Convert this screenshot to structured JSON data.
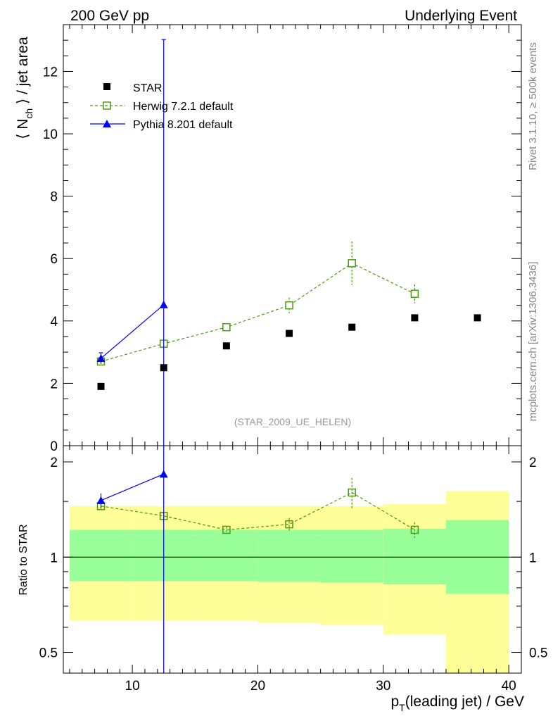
{
  "chart_data": [
    {
      "type": "scatter",
      "panel": "main",
      "title_left": "200 GeV pp",
      "title_right": "Underlying Event",
      "ylabel_main": "⟨ N",
      "ylabel_sub": "ch",
      "ylabel_tail": " ⟩ / jet area",
      "xlim": [
        4.5,
        41
      ],
      "ylim": [
        0,
        13.5
      ],
      "yticks": [
        0,
        2,
        4,
        6,
        8,
        10,
        12
      ],
      "yticklabels": [
        "0",
        "2",
        "4",
        "6",
        "8",
        "10",
        "12"
      ],
      "series": [
        {
          "name": "STAR",
          "color": "#000000",
          "x": [
            7.5,
            12.5,
            17.5,
            22.5,
            27.5,
            32.5,
            37.5
          ],
          "y": [
            1.9,
            2.5,
            3.2,
            3.6,
            3.8,
            4.1,
            4.1
          ]
        },
        {
          "name": "Herwig 7.2.1 default",
          "color": "#4a9a10",
          "x": [
            7.5,
            12.5,
            17.5,
            22.5,
            27.5,
            32.5
          ],
          "y": [
            2.7,
            3.27,
            3.8,
            4.5,
            5.85,
            4.87
          ],
          "err": [
            0.1,
            0.08,
            0.1,
            0.25,
            0.7,
            0.3
          ]
        },
        {
          "name": "Pythia 8.201 default",
          "color": "#0000ff",
          "x": [
            7.5,
            12.5
          ],
          "y": [
            2.8,
            4.52
          ],
          "err_low": [
            0.18,
            4.52
          ],
          "err_high": [
            0.18,
            8.5
          ]
        }
      ],
      "watermark": "(STAR_2009_UE_HELEN)",
      "side_text_top": "Rivet 3.1.10, ≥ 500k events",
      "side_text_bottom": "mcplots.cern.ch [arXiv:1306.3436]"
    },
    {
      "type": "line",
      "panel": "ratio",
      "ylabel": "Ratio to STAR",
      "xlabel_main": "p",
      "xlabel_sub": "T",
      "xlabel_tail": "(leading jet) / GeV",
      "scale": "log",
      "ylim": [
        0.43,
        2.25
      ],
      "yticks": [
        0.5,
        1,
        2
      ],
      "yticklabels": [
        "0.5",
        "1",
        "2"
      ],
      "xticks": [
        10,
        20,
        30,
        40
      ],
      "xticklabels": [
        "10",
        "20",
        "30",
        "40"
      ],
      "bands": {
        "bin_edges": [
          5,
          10,
          15,
          20,
          25,
          30,
          35,
          40
        ],
        "inner_low": [
          0.84,
          0.84,
          0.84,
          0.835,
          0.83,
          0.82,
          0.765
        ],
        "inner_high": [
          1.22,
          1.22,
          1.22,
          1.22,
          1.22,
          1.23,
          1.31
        ],
        "outer_low": [
          0.63,
          0.63,
          0.63,
          0.62,
          0.61,
          0.57,
          0.41
        ],
        "outer_high": [
          1.45,
          1.45,
          1.45,
          1.45,
          1.45,
          1.47,
          1.62
        ],
        "inner_color": "#99ff99",
        "outer_color": "#ffff99"
      },
      "series": [
        {
          "name": "Herwig 7.2.1 default",
          "color": "#4a9a10",
          "x": [
            7.5,
            12.5,
            17.5,
            22.5,
            27.5,
            32.5
          ],
          "y": [
            1.45,
            1.35,
            1.22,
            1.27,
            1.6,
            1.22
          ],
          "err": [
            0.03,
            0.03,
            0.03,
            0.06,
            0.18,
            0.07
          ]
        },
        {
          "name": "Pythia 8.201 default",
          "color": "#0000ff",
          "x": [
            7.5,
            12.5
          ],
          "y": [
            1.51,
            1.83
          ],
          "err_low": [
            0.08,
            1.8
          ],
          "err_high": [
            0.08,
            1.0
          ]
        }
      ]
    }
  ]
}
